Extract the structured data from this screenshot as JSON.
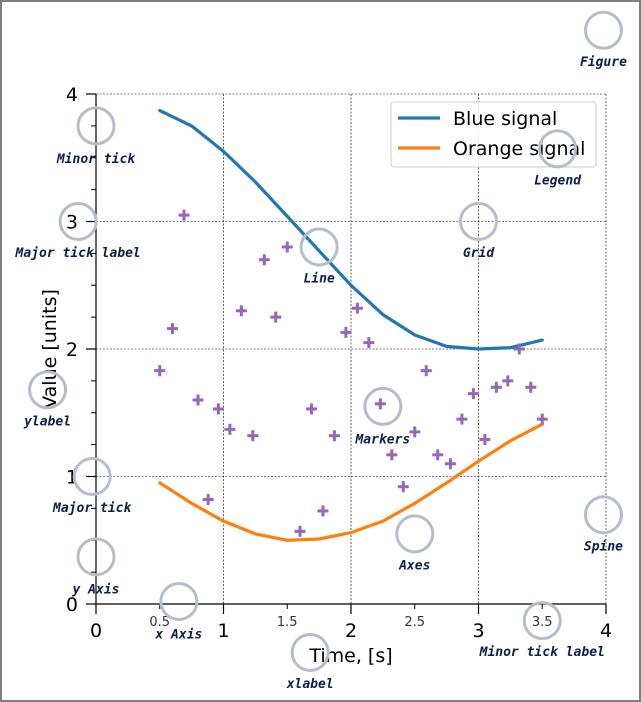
{
  "colors": {
    "blue": "#1f77b4",
    "orange": "#ff7f0e",
    "markers": "#9467bd",
    "annotation_circle": "#b6bccb",
    "annotation_text": "#0b1f4e",
    "frame": "#7f7f7f"
  },
  "chart_data": {
    "type": "line",
    "title": "",
    "xlabel": "Time, [s]",
    "ylabel": "Value [units]",
    "xlim": [
      0,
      4
    ],
    "ylim": [
      0,
      4
    ],
    "x_major_ticks": [
      0,
      1,
      2,
      3,
      4
    ],
    "x_major_tick_labels": [
      "0",
      "1",
      "2",
      "3",
      "4"
    ],
    "x_minor_ticks": [
      0.5,
      1.5,
      2.5,
      3.5
    ],
    "x_minor_tick_labels": [
      "0.5",
      "1.5",
      "2.5",
      "3.5"
    ],
    "y_major_ticks": [
      0,
      1,
      2,
      3,
      4
    ],
    "y_major_tick_labels": [
      "0",
      "1",
      "2",
      "3",
      "4"
    ],
    "y_minor_ticks": [
      0.25,
      0.5,
      0.75,
      1.25,
      1.5,
      1.75,
      2.25,
      2.5,
      2.75,
      3.25,
      3.5,
      3.75
    ],
    "grid": true,
    "legend_position": "top-right",
    "series": [
      {
        "name": "Blue signal",
        "kind": "line",
        "color": "#1f77b4",
        "x": [
          0.5,
          0.75,
          1.0,
          1.25,
          1.5,
          1.75,
          2.0,
          2.25,
          2.5,
          2.75,
          3.0,
          3.25,
          3.5
        ],
        "y": [
          3.87,
          3.75,
          3.55,
          3.31,
          3.04,
          2.77,
          2.5,
          2.27,
          2.11,
          2.02,
          2.0,
          2.01,
          2.07
        ]
      },
      {
        "name": "Orange signal",
        "kind": "line",
        "color": "#ff7f0e",
        "x": [
          0.5,
          0.75,
          1.0,
          1.25,
          1.5,
          1.75,
          2.0,
          2.25,
          2.5,
          2.75,
          3.0,
          3.25,
          3.5
        ],
        "y": [
          0.95,
          0.79,
          0.65,
          0.55,
          0.5,
          0.51,
          0.56,
          0.65,
          0.79,
          0.95,
          1.12,
          1.28,
          1.41
        ]
      },
      {
        "name": "",
        "kind": "scatter",
        "marker": "+",
        "color": "#9467bd",
        "x": [
          0.5,
          0.6,
          0.69,
          0.8,
          0.88,
          0.96,
          1.05,
          1.14,
          1.23,
          1.32,
          1.41,
          1.5,
          1.6,
          1.69,
          1.78,
          1.87,
          1.96,
          2.05,
          2.14,
          2.23,
          2.32,
          2.41,
          2.5,
          2.59,
          2.68,
          2.78,
          2.87,
          2.96,
          3.05,
          3.14,
          3.23,
          3.32,
          3.41,
          3.5
        ],
        "y": [
          1.83,
          2.16,
          3.05,
          1.6,
          0.82,
          1.53,
          1.37,
          2.3,
          1.32,
          2.7,
          2.25,
          2.8,
          0.57,
          1.53,
          0.73,
          1.32,
          2.13,
          2.32,
          2.05,
          1.57,
          1.17,
          0.92,
          1.35,
          1.83,
          1.17,
          1.1,
          1.45,
          1.65,
          1.29,
          1.7,
          1.75,
          2.0,
          1.7,
          1.45
        ]
      }
    ],
    "annotations": [
      {
        "label": "Figure",
        "circle": [
          3.98,
          4.5
        ],
        "text": [
          3.98,
          4.26
        ]
      },
      {
        "label": "Minor tick",
        "circle": [
          0.0,
          3.75
        ],
        "text": [
          0.0,
          3.5
        ]
      },
      {
        "label": "Legend",
        "circle": [
          3.62,
          3.57
        ],
        "text": [
          3.62,
          3.33
        ]
      },
      {
        "label": "Major tick label",
        "circle": [
          -0.14,
          3.0
        ],
        "text": [
          -0.14,
          2.76
        ]
      },
      {
        "label": "Grid",
        "circle": [
          3.0,
          3.0
        ],
        "text": [
          3.0,
          2.76
        ]
      },
      {
        "label": "Line",
        "circle": [
          1.75,
          2.8
        ],
        "text": [
          1.75,
          2.56
        ]
      },
      {
        "label": "ylabel",
        "circle": [
          -0.38,
          1.68
        ],
        "text": [
          -0.38,
          1.44
        ]
      },
      {
        "label": "Markers",
        "circle": [
          2.25,
          1.55
        ],
        "text": [
          2.25,
          1.3
        ]
      },
      {
        "label": "Major tick",
        "circle": [
          -0.03,
          1.0
        ],
        "text": [
          -0.03,
          0.76
        ]
      },
      {
        "label": "Spine",
        "circle": [
          3.98,
          0.7
        ],
        "text": [
          3.98,
          0.46
        ]
      },
      {
        "label": "Axes",
        "circle": [
          2.5,
          0.55
        ],
        "text": [
          2.5,
          0.31
        ]
      },
      {
        "label": "y Axis",
        "circle": [
          0.0,
          0.37
        ],
        "text": [
          0.0,
          0.12
        ]
      },
      {
        "label": "x Axis",
        "circle": [
          0.65,
          0.02
        ],
        "text": [
          0.65,
          -0.23
        ]
      },
      {
        "label": "Minor tick label",
        "circle": [
          3.5,
          -0.13
        ],
        "text": [
          3.5,
          -0.37
        ]
      },
      {
        "label": "xlabel",
        "circle": [
          1.68,
          -0.38
        ],
        "text": [
          1.68,
          -0.62
        ]
      }
    ]
  }
}
